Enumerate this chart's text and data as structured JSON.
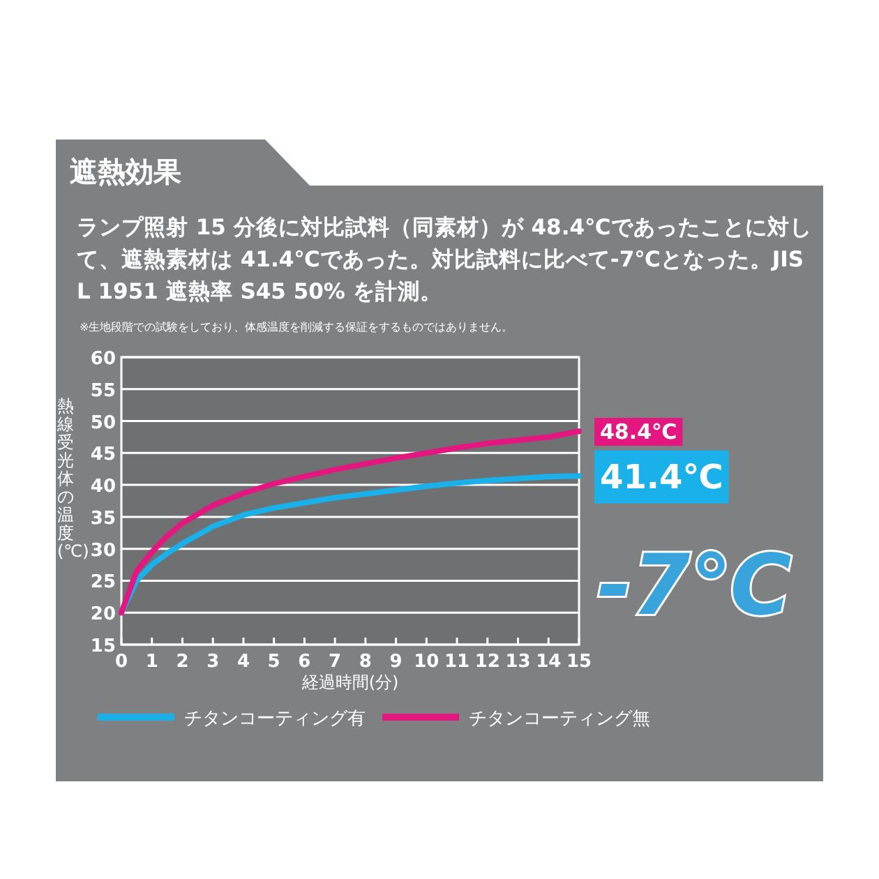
{
  "chart_data": {
    "type": "line",
    "title": "遮熱効果",
    "subtitle": "ランプ照射 15 分後に対比試料（同素材）が 48.4℃であったことに対して、遮熱素材は 41.4℃であった。対比試料に比べて-7℃となった。JIS L 1951 遮熱率 S45 50% を計測。",
    "xlabel": "経過時間(分)",
    "ylabel": "熱線受光体の温度(℃)",
    "x": [
      0,
      0.5,
      1,
      1.5,
      2,
      3,
      4,
      5,
      6,
      7,
      8,
      9,
      10,
      11,
      12,
      13,
      14,
      15
    ],
    "series": [
      {
        "name": "チタンコーティング有",
        "color": "#1ab0ea",
        "values": [
          20,
          25,
          27.5,
          29.3,
          30.8,
          33.5,
          35.3,
          36.4,
          37.2,
          38,
          38.6,
          39.2,
          39.8,
          40.3,
          40.7,
          41,
          41.3,
          41.4
        ]
      },
      {
        "name": "チタンコーティング無",
        "color": "#e3177f",
        "values": [
          20,
          26.5,
          29.5,
          32,
          34,
          36.8,
          38.7,
          40.2,
          41.3,
          42.4,
          43.3,
          44.2,
          45,
          45.8,
          46.5,
          47,
          47.5,
          48.4
        ]
      }
    ],
    "xlim": [
      0,
      15
    ],
    "ylim": [
      15,
      60
    ],
    "xticks": [
      0,
      1,
      2,
      3,
      4,
      5,
      6,
      7,
      8,
      9,
      10,
      11,
      12,
      13,
      14,
      15
    ],
    "yticks": [
      15,
      20,
      25,
      30,
      35,
      40,
      45,
      50,
      55,
      60
    ],
    "grid": "y",
    "legend": "bottom",
    "annotations": [
      {
        "text": "48.4℃",
        "x": 15,
        "y": 48.4
      },
      {
        "text": "41.4℃",
        "x": 15,
        "y": 41.4
      },
      "-7℃",
      "※生地段階での試験をしており、体感温度を削減する保証をするものではありません。"
    ]
  }
}
